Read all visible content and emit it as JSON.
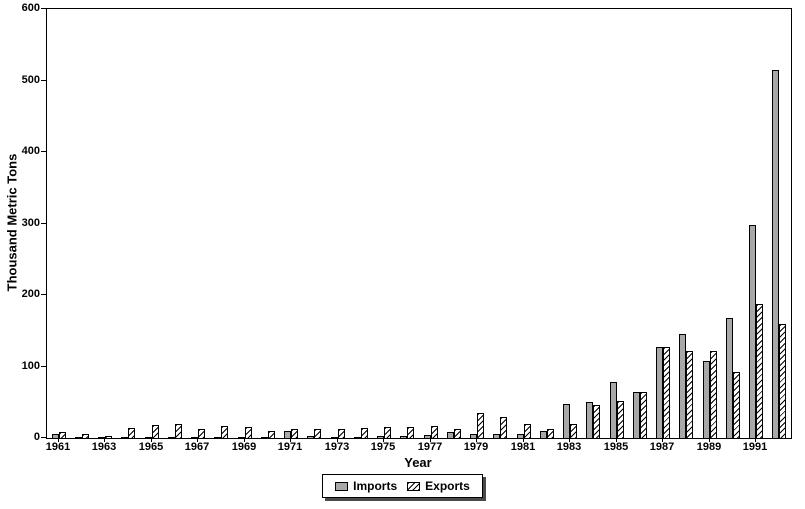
{
  "figure": {
    "y_axis_title": "Thousand Metric Tons",
    "x_axis_title": "Year"
  },
  "legend": {
    "imports_label": "Imports",
    "exports_label": "Exports"
  },
  "chart_data": {
    "type": "bar",
    "title": "",
    "xlabel": "Year",
    "ylabel": "Thousand Metric Tons",
    "ylim": [
      0,
      600
    ],
    "yticks": [
      0,
      100,
      200,
      300,
      400,
      500,
      600
    ],
    "grid": false,
    "legend_position": "bottom",
    "categories": [
      1961,
      1962,
      1963,
      1964,
      1965,
      1966,
      1967,
      1968,
      1969,
      1970,
      1971,
      1972,
      1973,
      1974,
      1975,
      1976,
      1977,
      1978,
      1979,
      1980,
      1981,
      1982,
      1983,
      1984,
      1985,
      1986,
      1987,
      1988,
      1989,
      1990,
      1991,
      1992
    ],
    "xtick_labels": [
      "1961",
      "1963",
      "1965",
      "1967",
      "1969",
      "1971",
      "1973",
      "1975",
      "1977",
      "1979",
      "1981",
      "1983",
      "1985",
      "1987",
      "1989",
      "1991"
    ],
    "series": [
      {
        "name": "Imports",
        "values": [
          5,
          2,
          1,
          1,
          1,
          1,
          1,
          1,
          1,
          1,
          10,
          3,
          2,
          2,
          3,
          3,
          4,
          8,
          5,
          5,
          5,
          10,
          48,
          50,
          78,
          65,
          127,
          145,
          108,
          168,
          298,
          515
        ]
      },
      {
        "name": "Exports",
        "values": [
          8,
          5,
          3,
          14,
          18,
          20,
          13,
          17,
          15,
          10,
          12,
          12,
          13,
          14,
          15,
          16,
          17,
          13,
          35,
          29,
          20,
          13,
          20,
          46,
          52,
          65,
          127,
          122,
          122,
          92,
          188,
          160
        ]
      }
    ],
    "colors": {
      "imports_fill": "#a8a8a8",
      "exports_fill": "hatched-diagonal",
      "bar_border": "#000000"
    }
  }
}
